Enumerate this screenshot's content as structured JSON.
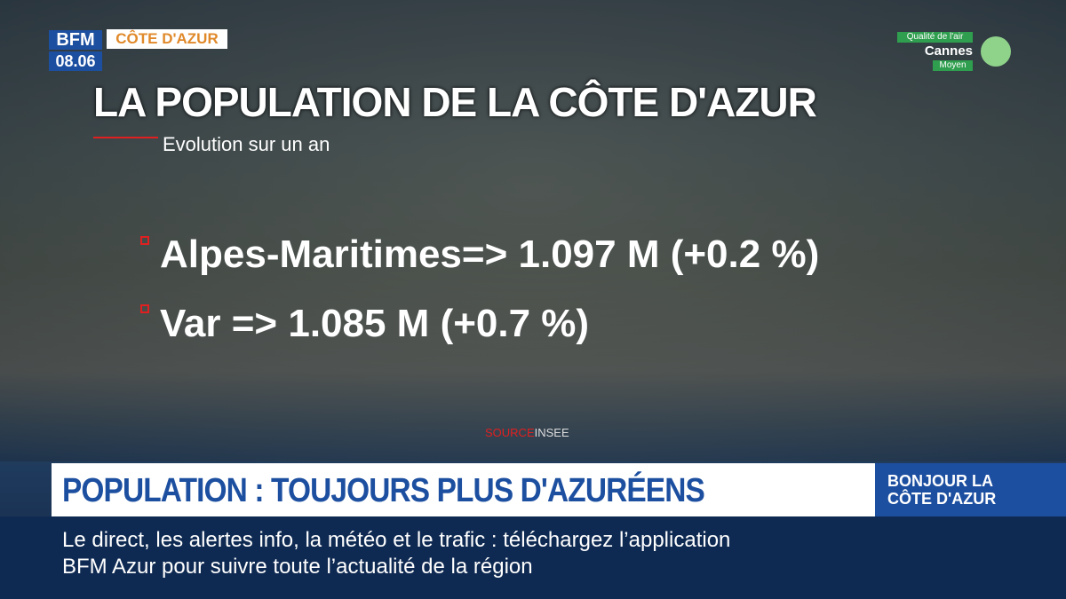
{
  "logo": {
    "brand": "BFM",
    "time": "08.06",
    "region": "CÔTE D'AZUR"
  },
  "air_quality": {
    "label": "Qualité de l'air",
    "city": "Cannes",
    "level": "Moyen"
  },
  "slide": {
    "title": "LA POPULATION DE LA CÔTE D'AZUR",
    "subtitle": "Evolution sur un an",
    "items": [
      "Alpes-Maritimes=> 1.097 M (+0.2 %)",
      "Var => 1.085 M (+0.7 %)"
    ],
    "source_label": "SOURCE",
    "source": "INSEE"
  },
  "headline": "POPULATION : TOUJOURS PLUS D'AZURÉENS",
  "program": [
    "BONJOUR LA",
    "CÔTE D'AZUR"
  ],
  "ticker": [
    "Le direct, les alertes info, la météo et le trafic : téléchargez l’application",
    "BFM Azur pour suivre toute l’actualité de la région"
  ]
}
